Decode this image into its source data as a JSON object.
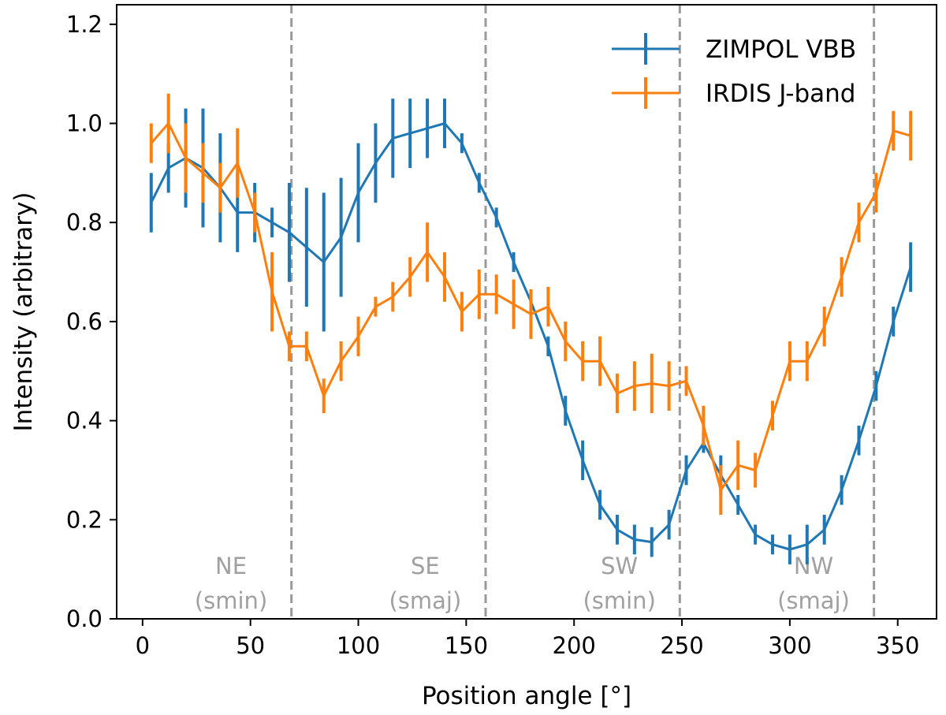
{
  "chart_data": {
    "type": "line",
    "title": "",
    "xlabel": "Position angle [°]",
    "ylabel": "Intensity (arbitrary)",
    "xlim": [
      -12,
      368
    ],
    "ylim": [
      0.0,
      1.2
    ],
    "xticks": [
      0,
      50,
      100,
      150,
      200,
      250,
      300,
      350
    ],
    "yticks": [
      0.0,
      0.2,
      0.4,
      0.6,
      0.8,
      1.0,
      1.2
    ],
    "xtick_labels": [
      "0",
      "50",
      "100",
      "150",
      "200",
      "250",
      "300",
      "350"
    ],
    "ytick_labels": [
      "0.0",
      "0.2",
      "0.4",
      "0.6",
      "0.8",
      "1.0",
      "1.2"
    ],
    "grid": false,
    "legend_position": "top-right",
    "dividers": [
      69,
      159,
      249,
      339
    ],
    "divider_color": "#999999",
    "regions": [
      {
        "x": 41,
        "line1": "NE",
        "line2": "(smin)"
      },
      {
        "x": 131,
        "line1": "SE",
        "line2": "(smaj)"
      },
      {
        "x": 221,
        "line1": "SW",
        "line2": "(smin)"
      },
      {
        "x": 311,
        "line1": "NW",
        "line2": "(smaj)"
      }
    ],
    "region_label_color": "#a0a0a0",
    "series": [
      {
        "name": "ZIMPOL VBB",
        "color": "#1f77b4",
        "x": [
          4,
          12,
          20,
          28,
          36,
          44,
          52,
          60,
          68,
          76,
          84,
          92,
          100,
          108,
          116,
          124,
          132,
          140,
          148,
          156,
          164,
          172,
          180,
          188,
          196,
          204,
          212,
          220,
          228,
          236,
          244,
          252,
          260,
          268,
          276,
          284,
          292,
          300,
          308,
          316,
          324,
          332,
          340,
          348,
          356
        ],
        "y": [
          0.84,
          0.91,
          0.93,
          0.91,
          0.87,
          0.82,
          0.82,
          0.8,
          0.78,
          0.75,
          0.72,
          0.77,
          0.86,
          0.92,
          0.97,
          0.98,
          0.99,
          1.0,
          0.96,
          0.88,
          0.81,
          0.72,
          0.64,
          0.55,
          0.42,
          0.32,
          0.23,
          0.18,
          0.16,
          0.155,
          0.19,
          0.3,
          0.355,
          0.29,
          0.23,
          0.17,
          0.15,
          0.14,
          0.15,
          0.18,
          0.26,
          0.36,
          0.47,
          0.6,
          0.71
        ],
        "err": [
          0.06,
          0.05,
          0.1,
          0.12,
          0.11,
          0.08,
          0.06,
          0.03,
          0.1,
          0.12,
          0.14,
          0.12,
          0.1,
          0.08,
          0.08,
          0.07,
          0.06,
          0.05,
          0.02,
          0.02,
          0.02,
          0.02,
          0.02,
          0.02,
          0.03,
          0.04,
          0.03,
          0.03,
          0.03,
          0.03,
          0.03,
          0.03,
          0.02,
          0.04,
          0.02,
          0.02,
          0.02,
          0.03,
          0.04,
          0.03,
          0.03,
          0.03,
          0.03,
          0.03,
          0.05
        ]
      },
      {
        "name": "IRDIS J-band",
        "color": "#ff7f0e",
        "x": [
          4,
          12,
          20,
          28,
          36,
          44,
          52,
          60,
          68,
          76,
          84,
          92,
          100,
          108,
          116,
          124,
          132,
          140,
          148,
          156,
          164,
          172,
          180,
          188,
          196,
          204,
          212,
          220,
          228,
          236,
          244,
          252,
          260,
          268,
          276,
          284,
          292,
          300,
          308,
          316,
          324,
          332,
          340,
          348,
          356
        ],
        "y": [
          0.96,
          1.0,
          0.93,
          0.9,
          0.87,
          0.92,
          0.82,
          0.66,
          0.55,
          0.55,
          0.45,
          0.52,
          0.57,
          0.63,
          0.65,
          0.69,
          0.74,
          0.69,
          0.62,
          0.655,
          0.655,
          0.635,
          0.615,
          0.63,
          0.56,
          0.52,
          0.52,
          0.455,
          0.47,
          0.475,
          0.47,
          0.48,
          0.39,
          0.26,
          0.31,
          0.3,
          0.41,
          0.52,
          0.52,
          0.59,
          0.69,
          0.8,
          0.86,
          0.985,
          0.975
        ]
      }
    ]
  }
}
